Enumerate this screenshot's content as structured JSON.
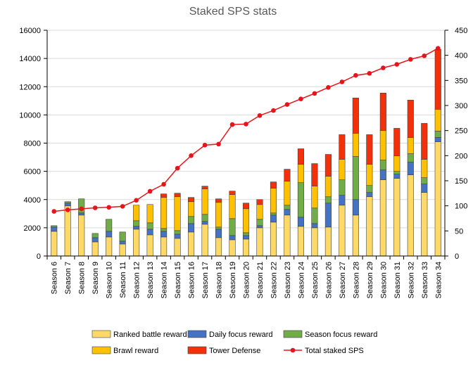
{
  "chart_data": {
    "type": "bar",
    "stacked": true,
    "title": "Staked SPS stats",
    "xlabel": "",
    "ylabel": "",
    "ylim": [
      0,
      16000
    ],
    "y2lim": [
      0,
      450
    ],
    "y_ticks": [
      0,
      2000,
      4000,
      6000,
      8000,
      10000,
      12000,
      14000,
      16000
    ],
    "y2_ticks": [
      0,
      50,
      100,
      150,
      200,
      250,
      300,
      350,
      400,
      450
    ],
    "grid": true,
    "legend_position": "bottom",
    "colors": {
      "ranked": "#FFD966",
      "daily": "#4472C4",
      "season": "#70AD47",
      "brawl": "#FFC000",
      "tower": "#F4300A",
      "total": "#E8141B"
    },
    "categories": [
      "Season 6",
      "Season 7",
      "Season 8",
      "Season 9",
      "Season 10",
      "Season 11",
      "Season 12",
      "Season 13",
      "Season 14",
      "Season 15",
      "Season 16",
      "Season 17",
      "Season 18",
      "Season 19",
      "Season 20",
      "Season 21",
      "Season 22",
      "Season 23",
      "Season 24",
      "Season 25",
      "Season 26",
      "Season 27",
      "Season 28",
      "Season 29",
      "Season 30",
      "Season 31",
      "Season 32",
      "Season 33",
      "Season 34"
    ],
    "series": [
      {
        "name": "Ranked battle reward",
        "key": "ranked",
        "axis": "left",
        "values": [
          1750,
          3550,
          2900,
          1000,
          1350,
          850,
          1900,
          1500,
          1350,
          1250,
          1700,
          2250,
          1300,
          1150,
          1200,
          2000,
          2400,
          2900,
          2100,
          2000,
          2050,
          3600,
          2900,
          4200,
          5400,
          5500,
          5750,
          4500,
          8100
        ]
      },
      {
        "name": "Daily focus reward",
        "key": "daily",
        "axis": "left",
        "values": [
          300,
          200,
          150,
          300,
          400,
          200,
          200,
          400,
          400,
          300,
          600,
          200,
          600,
          300,
          250,
          150,
          500,
          400,
          650,
          300,
          1700,
          700,
          1100,
          300,
          700,
          300,
          900,
          600,
          300
        ]
      },
      {
        "name": "Season focus reward",
        "key": "season",
        "axis": "left",
        "values": [
          100,
          100,
          1000,
          300,
          850,
          650,
          400,
          450,
          200,
          250,
          500,
          500,
          150,
          1200,
          200,
          450,
          150,
          300,
          2450,
          1100,
          450,
          1100,
          3050,
          500,
          700,
          200,
          600,
          450,
          450
        ]
      },
      {
        "name": "Brawl reward",
        "key": "brawl",
        "axis": "left",
        "values": [
          0,
          0,
          0,
          0,
          0,
          0,
          1100,
          1300,
          2200,
          2400,
          1050,
          1800,
          1750,
          1700,
          1700,
          1050,
          1750,
          1700,
          1300,
          1550,
          1450,
          1450,
          1650,
          1500,
          2100,
          1100,
          1150,
          1300,
          1550
        ]
      },
      {
        "name": "Tower Defense",
        "key": "tower",
        "axis": "left",
        "values": [
          0,
          0,
          0,
          0,
          0,
          0,
          0,
          0,
          250,
          250,
          300,
          200,
          250,
          250,
          400,
          350,
          450,
          850,
          1100,
          1600,
          1550,
          1750,
          2500,
          2100,
          2650,
          1950,
          2650,
          2550,
          4250
        ]
      },
      {
        "name": "Total staked SPS",
        "key": "total",
        "axis": "right",
        "type": "line",
        "values": [
          89,
          92,
          94,
          96,
          97,
          99,
          111,
          129,
          143,
          175,
          200,
          221,
          223,
          262,
          263,
          280,
          290,
          302,
          313,
          324,
          336,
          347,
          360,
          364,
          375,
          382,
          392,
          399,
          414
        ]
      }
    ]
  }
}
